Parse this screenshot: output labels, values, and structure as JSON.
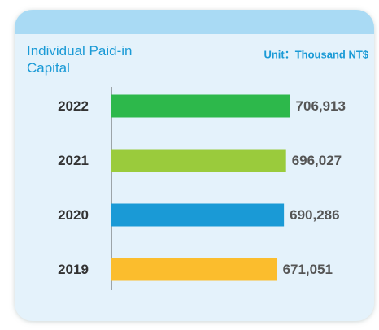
{
  "chart_data": {
    "type": "bar",
    "orientation": "horizontal",
    "title": "Individual Paid-in Capital",
    "subtitle": "Unit：Thousand NT$",
    "categories": [
      "2022",
      "2021",
      "2020",
      "2019"
    ],
    "values": [
      706913,
      696027,
      690286,
      671051
    ],
    "value_labels": [
      "706,913",
      "696,027",
      "690,286",
      "671,051"
    ],
    "colors": [
      "#2db84b",
      "#9acb3c",
      "#1a9ad6",
      "#fbbd2d"
    ],
    "xlim": [
      214000,
      800000
    ]
  }
}
